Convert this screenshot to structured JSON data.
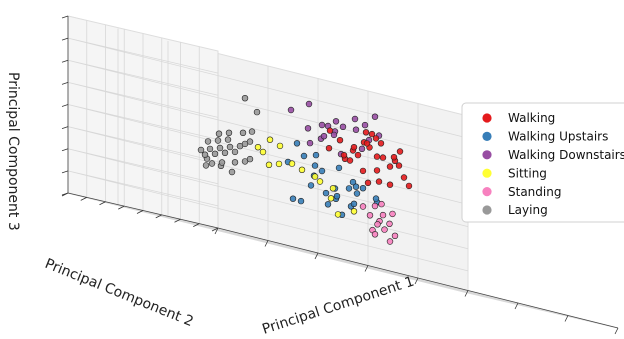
{
  "chart_data": {
    "type": "scatter",
    "projection": "3d",
    "title": "",
    "xlabel": "Principal Component 1",
    "ylabel": "Principal Component 2",
    "zlabel": "Principal Component 3",
    "grid": true,
    "legend": "right",
    "series": [
      {
        "name": "Walking",
        "color": "#e41a1c",
        "points": [
          [
            0.62,
            0.72,
            0.62
          ],
          [
            0.66,
            0.75,
            0.68
          ],
          [
            0.7,
            0.78,
            0.72
          ],
          [
            0.58,
            0.7,
            0.58
          ],
          [
            0.64,
            0.8,
            0.66
          ],
          [
            0.72,
            0.74,
            0.64
          ],
          [
            0.68,
            0.82,
            0.7
          ],
          [
            0.6,
            0.76,
            0.6
          ],
          [
            0.74,
            0.8,
            0.66
          ],
          [
            0.66,
            0.7,
            0.56
          ],
          [
            0.7,
            0.72,
            0.6
          ],
          [
            0.63,
            0.78,
            0.64
          ],
          [
            0.76,
            0.82,
            0.62
          ],
          [
            0.68,
            0.76,
            0.74
          ],
          [
            0.62,
            0.84,
            0.68
          ],
          [
            0.72,
            0.86,
            0.64
          ],
          [
            0.66,
            0.88,
            0.58
          ],
          [
            0.78,
            0.84,
            0.56
          ],
          [
            0.7,
            0.9,
            0.54
          ],
          [
            0.64,
            0.72,
            0.76
          ],
          [
            0.58,
            0.8,
            0.72
          ],
          [
            0.74,
            0.76,
            0.7
          ],
          [
            0.8,
            0.86,
            0.52
          ],
          [
            0.68,
            0.74,
            0.5
          ],
          [
            0.6,
            0.86,
            0.62
          ],
          [
            0.66,
            0.66,
            0.64
          ],
          [
            0.72,
            0.92,
            0.48
          ],
          [
            0.76,
            0.88,
            0.5
          ],
          [
            0.62,
            0.68,
            0.7
          ],
          [
            0.7,
            0.84,
            0.76
          ]
        ]
      },
      {
        "name": "Walking Upstairs",
        "color": "#377eb8",
        "points": [
          [
            0.55,
            0.66,
            0.52
          ],
          [
            0.6,
            0.7,
            0.46
          ],
          [
            0.52,
            0.74,
            0.5
          ],
          [
            0.64,
            0.74,
            0.44
          ],
          [
            0.58,
            0.62,
            0.4
          ],
          [
            0.5,
            0.68,
            0.56
          ],
          [
            0.62,
            0.78,
            0.42
          ],
          [
            0.56,
            0.8,
            0.48
          ],
          [
            0.66,
            0.7,
            0.38
          ],
          [
            0.48,
            0.64,
            0.44
          ],
          [
            0.54,
            0.72,
            0.36
          ],
          [
            0.6,
            0.82,
            0.4
          ],
          [
            0.46,
            0.7,
            0.6
          ],
          [
            0.58,
            0.66,
            0.32
          ],
          [
            0.64,
            0.8,
            0.34
          ],
          [
            0.52,
            0.6,
            0.34
          ],
          [
            0.68,
            0.76,
            0.4
          ],
          [
            0.56,
            0.76,
            0.3
          ],
          [
            0.42,
            0.62,
            0.28
          ],
          [
            0.5,
            0.78,
            0.28
          ],
          [
            0.62,
            0.86,
            0.36
          ],
          [
            0.45,
            0.58,
            0.38
          ],
          [
            0.58,
            0.72,
            0.26
          ],
          [
            0.66,
            0.84,
            0.44
          ],
          [
            0.4,
            0.6,
            0.48
          ],
          [
            0.53,
            0.84,
            0.54
          ]
        ]
      },
      {
        "name": "Walking Downstairs",
        "color": "#984ea3",
        "points": [
          [
            0.56,
            0.72,
            0.7
          ],
          [
            0.6,
            0.68,
            0.76
          ],
          [
            0.52,
            0.7,
            0.66
          ],
          [
            0.58,
            0.76,
            0.78
          ],
          [
            0.62,
            0.74,
            0.82
          ],
          [
            0.54,
            0.66,
            0.72
          ],
          [
            0.5,
            0.72,
            0.62
          ],
          [
            0.64,
            0.7,
            0.72
          ],
          [
            0.66,
            0.78,
            0.8
          ],
          [
            0.56,
            0.8,
            0.74
          ],
          [
            0.48,
            0.68,
            0.7
          ],
          [
            0.6,
            0.64,
            0.66
          ],
          [
            0.62,
            0.82,
            0.76
          ],
          [
            0.46,
            0.74,
            0.78
          ],
          [
            0.54,
            0.62,
            0.6
          ],
          [
            0.58,
            0.84,
            0.68
          ],
          [
            0.68,
            0.74,
            0.76
          ],
          [
            0.52,
            0.78,
            0.84
          ],
          [
            0.5,
            0.6,
            0.74
          ],
          [
            0.64,
            0.66,
            0.86
          ]
        ]
      },
      {
        "name": "Sitting",
        "color": "#ffff33",
        "points": [
          [
            0.5,
            0.84,
            0.48
          ],
          [
            0.54,
            0.88,
            0.46
          ],
          [
            0.58,
            0.9,
            0.44
          ],
          [
            0.6,
            0.92,
            0.42
          ],
          [
            0.64,
            0.94,
            0.4
          ],
          [
            0.46,
            0.82,
            0.46
          ],
          [
            0.42,
            0.78,
            0.44
          ],
          [
            0.38,
            0.6,
            0.56
          ],
          [
            0.34,
            0.56,
            0.58
          ],
          [
            0.3,
            0.5,
            0.5
          ],
          [
            0.28,
            0.48,
            0.52
          ],
          [
            0.7,
            0.96,
            0.3
          ],
          [
            0.66,
            0.96,
            0.26
          ],
          [
            0.62,
            0.9,
            0.34
          ]
        ]
      },
      {
        "name": "Standing",
        "color": "#f781bf",
        "points": [
          [
            0.76,
            0.98,
            0.36
          ],
          [
            0.78,
            0.98,
            0.32
          ],
          [
            0.8,
            0.99,
            0.28
          ],
          [
            0.78,
            0.97,
            0.24
          ],
          [
            0.76,
            0.98,
            0.2
          ],
          [
            0.74,
            0.96,
            0.3
          ],
          [
            0.8,
            0.97,
            0.34
          ],
          [
            0.77,
            0.99,
            0.26
          ],
          [
            0.75,
            0.97,
            0.22
          ],
          [
            0.79,
            0.96,
            0.18
          ],
          [
            0.73,
            0.98,
            0.34
          ],
          [
            0.81,
            0.98,
            0.22
          ],
          [
            0.76,
            0.95,
            0.28
          ],
          [
            0.78,
            0.99,
            0.38
          ]
        ]
      },
      {
        "name": "Laying",
        "color": "#999999",
        "points": [
          [
            0.08,
            0.3,
            0.4
          ],
          [
            0.1,
            0.32,
            0.44
          ],
          [
            0.12,
            0.34,
            0.42
          ],
          [
            0.14,
            0.36,
            0.46
          ],
          [
            0.16,
            0.38,
            0.44
          ],
          [
            0.18,
            0.4,
            0.48
          ],
          [
            0.2,
            0.42,
            0.46
          ],
          [
            0.22,
            0.44,
            0.5
          ],
          [
            0.24,
            0.46,
            0.52
          ],
          [
            0.26,
            0.48,
            0.54
          ],
          [
            0.11,
            0.36,
            0.48
          ],
          [
            0.13,
            0.32,
            0.38
          ],
          [
            0.15,
            0.4,
            0.5
          ],
          [
            0.17,
            0.34,
            0.4
          ],
          [
            0.19,
            0.44,
            0.52
          ],
          [
            0.21,
            0.38,
            0.42
          ],
          [
            0.09,
            0.28,
            0.36
          ],
          [
            0.07,
            0.26,
            0.38
          ],
          [
            0.23,
            0.4,
            0.44
          ],
          [
            0.25,
            0.5,
            0.58
          ],
          [
            0.12,
            0.3,
            0.36
          ],
          [
            0.16,
            0.42,
            0.54
          ],
          [
            0.2,
            0.46,
            0.56
          ],
          [
            0.06,
            0.24,
            0.34
          ],
          [
            0.28,
            0.52,
            0.6
          ],
          [
            0.14,
            0.28,
            0.34
          ],
          [
            0.3,
            0.62,
            0.78
          ],
          [
            0.36,
            0.7,
            0.72
          ],
          [
            0.04,
            0.22,
            0.42
          ]
        ]
      }
    ]
  }
}
